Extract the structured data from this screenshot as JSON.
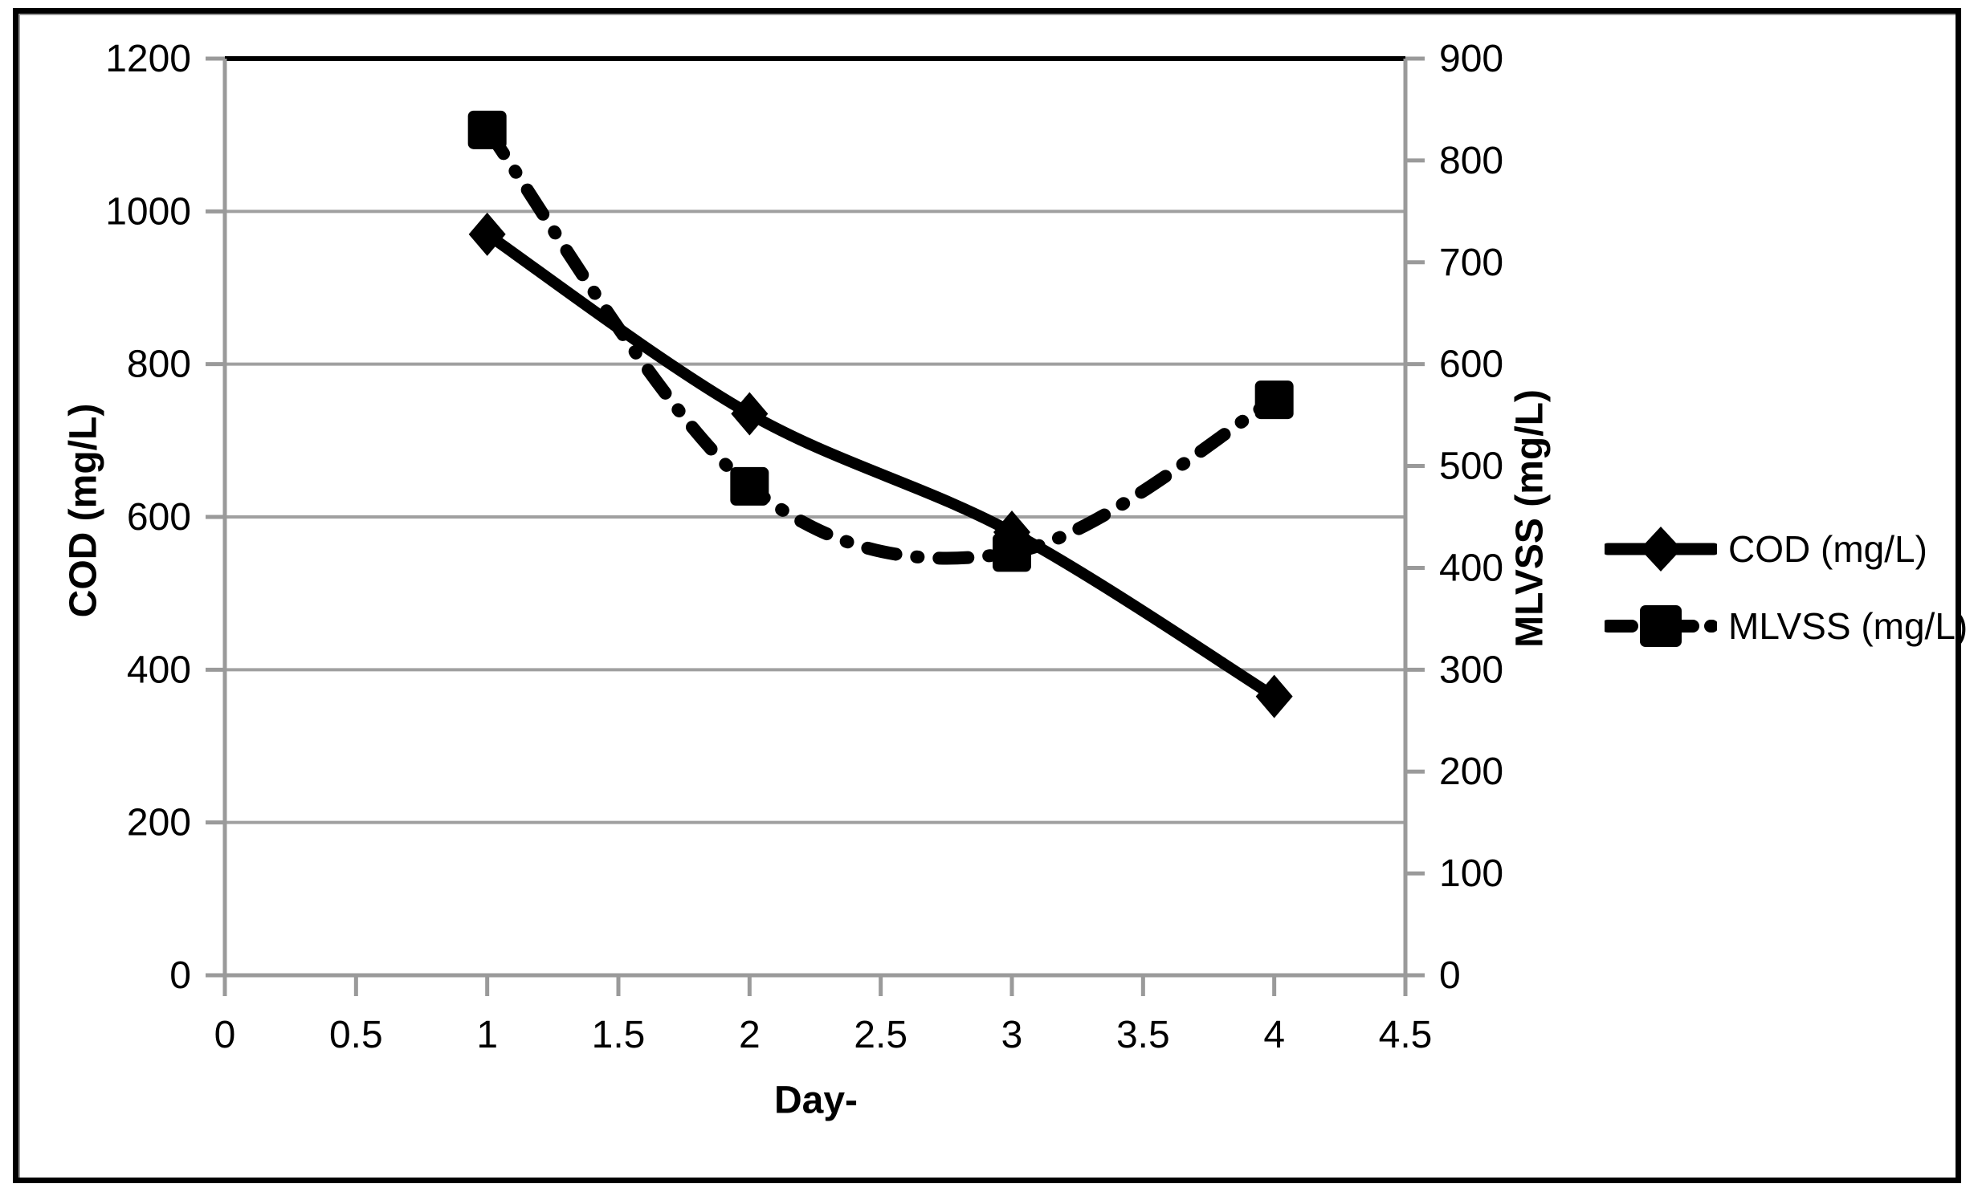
{
  "figure": {
    "xlabel": "Day-",
    "ylabel_left": "COD  (mg/L)",
    "ylabel_right": "MLVSS  (mg/L)"
  },
  "legend": {
    "position": "right",
    "items": [
      {
        "label": "COD (mg/L)",
        "marker": "diamond",
        "line_style": "solid"
      },
      {
        "label": "MLVSS (mg/L)",
        "marker": "square",
        "line_style": "dash-dot"
      }
    ]
  },
  "chart_data": {
    "type": "line",
    "x": [
      1,
      2,
      3,
      4
    ],
    "series": [
      {
        "name": "COD (mg/L)",
        "axis": "left",
        "marker": "diamond",
        "line_style": "solid",
        "values": [
          970,
          735,
          580,
          365
        ]
      },
      {
        "name": "MLVSS (mg/L)",
        "axis": "right",
        "marker": "square",
        "line_style": "dash-dot",
        "values": [
          830,
          480,
          415,
          565
        ]
      }
    ],
    "x_axis": {
      "label": "Day-",
      "min": 0,
      "max": 4.5,
      "ticks": [
        0,
        0.5,
        1,
        1.5,
        2,
        2.5,
        3,
        3.5,
        4,
        4.5
      ]
    },
    "y_axis_left": {
      "label": "COD  (mg/L)",
      "min": 0,
      "max": 1200,
      "ticks": [
        0,
        200,
        400,
        600,
        800,
        1000,
        1200
      ]
    },
    "y_axis_right": {
      "label": "MLVSS  (mg/L)",
      "min": 0,
      "max": 900,
      "ticks": [
        0,
        100,
        200,
        300,
        400,
        500,
        600,
        700,
        800,
        900
      ]
    },
    "grid": "horizontal-only",
    "legend_position": "right-middle",
    "colors": {
      "series": "#000000",
      "gridline": "#a0a0a0",
      "axis": "#9a9a9a",
      "top_border": "#000000",
      "background": "#ffffff",
      "frame": "#000000",
      "text": "#000000"
    }
  }
}
